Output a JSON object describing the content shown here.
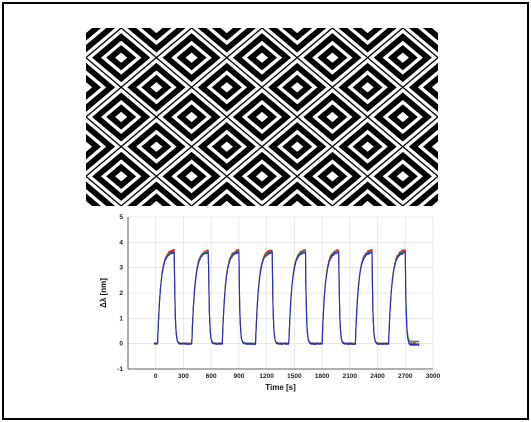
{
  "figure": {
    "pattern": {
      "name": "concentric-diamond-pattern",
      "colors": {
        "ink": "#000000",
        "paper": "#ffffff"
      },
      "columns": 5,
      "rows": 3,
      "rings": 5
    }
  },
  "chart_data": {
    "type": "line",
    "title": "",
    "xlabel": "Time [s]",
    "ylabel": "Δλ [nm]",
    "xlim": [
      -300,
      3000
    ],
    "ylim": [
      -1,
      5
    ],
    "xticks": [
      "0",
      "300",
      "600",
      "900",
      "1200",
      "1500",
      "1800",
      "2100",
      "2400",
      "2700",
      "3000"
    ],
    "yticks": [
      "-1",
      "0",
      "1",
      "2",
      "3",
      "4",
      "5"
    ],
    "grid": true,
    "baseline_nm": 0,
    "plateau_nm": 3.7,
    "cycles": [
      {
        "on_s": 20,
        "off_s": 200
      },
      {
        "on_s": 390,
        "off_s": 570
      },
      {
        "on_s": 720,
        "off_s": 900
      },
      {
        "on_s": 1080,
        "off_s": 1260
      },
      {
        "on_s": 1440,
        "off_s": 1620
      },
      {
        "on_s": 1800,
        "off_s": 1980
      },
      {
        "on_s": 2160,
        "off_s": 2340
      },
      {
        "on_s": 2520,
        "off_s": 2700
      }
    ],
    "series": [
      {
        "color": "#e02020",
        "offset_nm": 0.0
      },
      {
        "color": "#2e9a2e",
        "offset_nm": 0.08
      },
      {
        "color": "#2a2ad0",
        "offset_nm": -0.05
      }
    ]
  }
}
